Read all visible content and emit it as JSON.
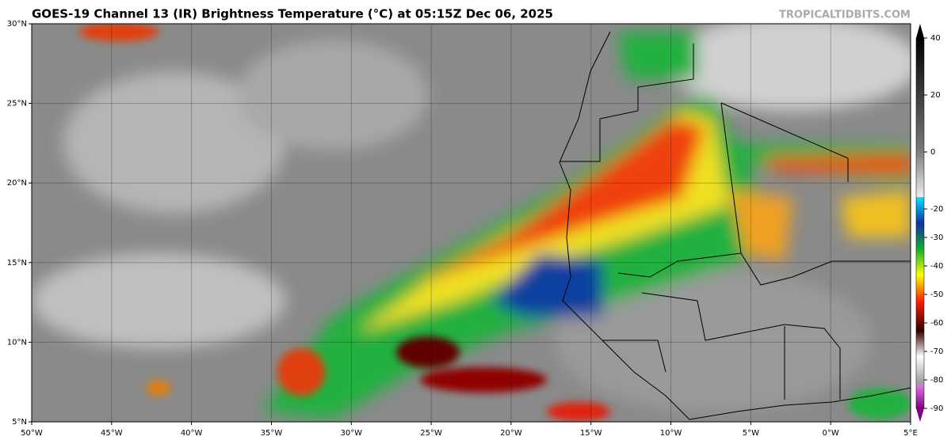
{
  "header": {
    "title": "GOES-19 Channel 13 (IR) Brightness Temperature (°C) at 05:15Z Dec 06, 2025",
    "credit": "TROPICALTIDBITS.COM"
  },
  "map": {
    "lon_labels": [
      "50°W",
      "45°W",
      "40°W",
      "35°W",
      "30°W",
      "25°W",
      "20°W",
      "15°W",
      "10°W",
      "5°W",
      "0°W",
      "5°E"
    ],
    "lat_labels": [
      "30°N",
      "25°N",
      "20°N",
      "15°N",
      "10°N",
      "5°N"
    ]
  },
  "colorbar": {
    "ticks": [
      40,
      20,
      0,
      -20,
      -30,
      -40,
      -50,
      -60,
      -70,
      -80,
      -90
    ]
  }
}
